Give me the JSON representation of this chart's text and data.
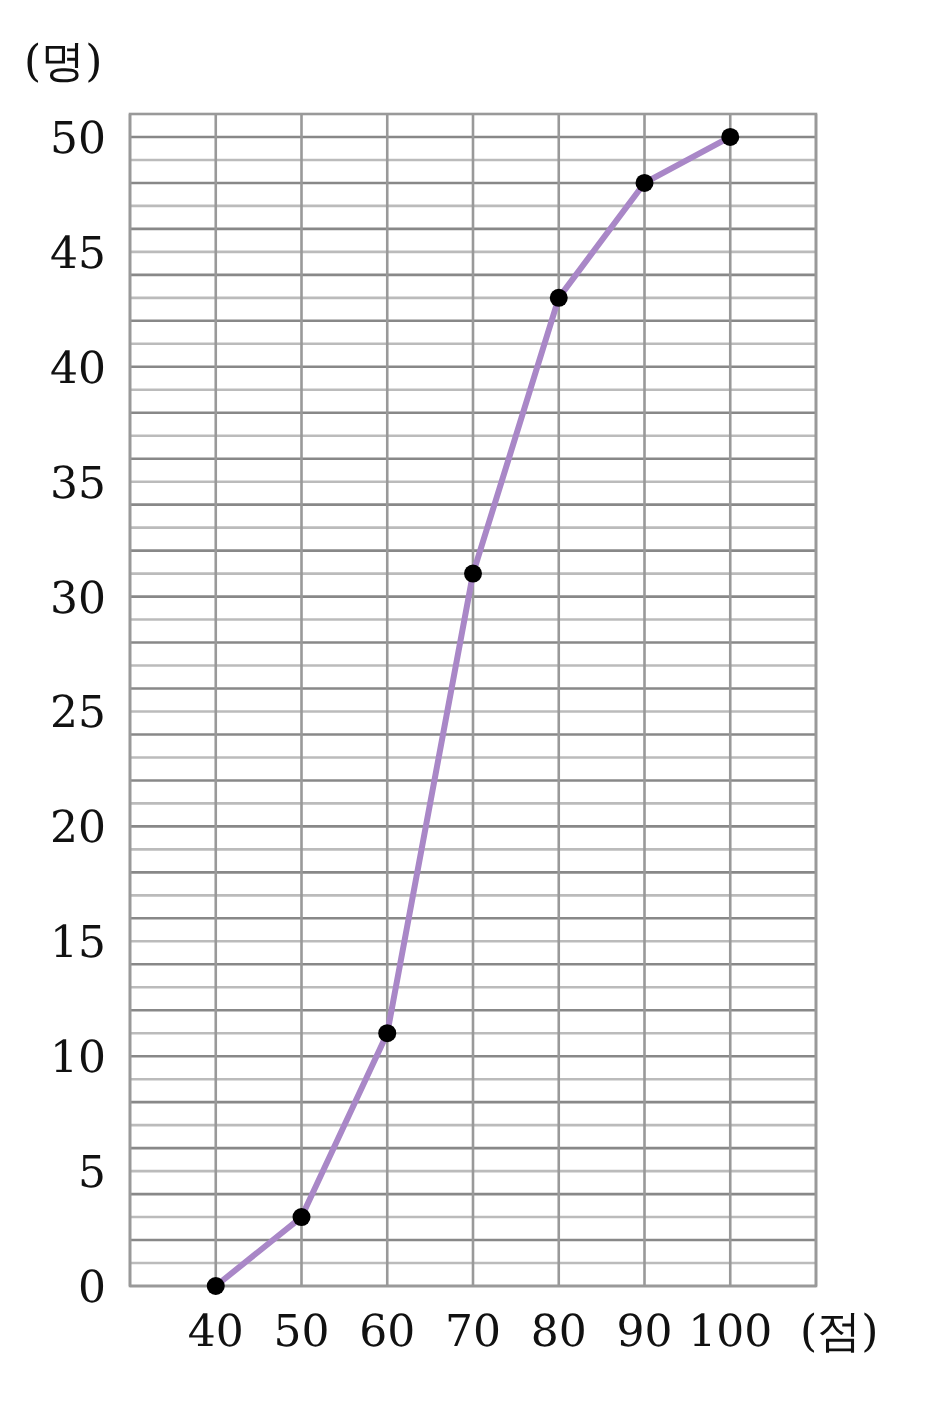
{
  "chart_data": {
    "type": "line",
    "xlabel": "(점)",
    "ylabel": "(명)",
    "x": [
      40,
      50,
      60,
      70,
      80,
      90,
      100
    ],
    "series": [
      {
        "color": "#a987c7",
        "values": [
          0,
          3,
          11,
          31,
          43,
          48,
          50
        ]
      }
    ],
    "xlim": [
      30,
      110
    ],
    "xticks": [
      {
        "value": 30,
        "label": null
      },
      40,
      50,
      60,
      70,
      80,
      90,
      100,
      {
        "value": 110,
        "label": null
      }
    ],
    "ylim": [
      0,
      51
    ],
    "yticks": [
      0,
      {
        "value": 1,
        "label": null
      },
      {
        "value": 2,
        "label": null
      },
      {
        "value": 3,
        "label": null
      },
      {
        "value": 4,
        "label": null
      },
      5,
      {
        "value": 6,
        "label": null
      },
      {
        "value": 7,
        "label": null
      },
      {
        "value": 8,
        "label": null
      },
      {
        "value": 9,
        "label": null
      },
      10,
      {
        "value": 11,
        "label": null
      },
      {
        "value": 12,
        "label": null
      },
      {
        "value": 13,
        "label": null
      },
      {
        "value": 14,
        "label": null
      },
      15,
      {
        "value": 16,
        "label": null
      },
      {
        "value": 17,
        "label": null
      },
      {
        "value": 18,
        "label": null
      },
      {
        "value": 19,
        "label": null
      },
      20,
      {
        "value": 21,
        "label": null
      },
      {
        "value": 22,
        "label": null
      },
      {
        "value": 23,
        "label": null
      },
      {
        "value": 24,
        "label": null
      },
      25,
      {
        "value": 26,
        "label": null
      },
      {
        "value": 27,
        "label": null
      },
      {
        "value": 28,
        "label": null
      },
      {
        "value": 29,
        "label": null
      },
      30,
      {
        "value": 31,
        "label": null
      },
      {
        "value": 32,
        "label": null
      },
      {
        "value": 33,
        "label": null
      },
      {
        "value": 34,
        "label": null
      },
      35,
      {
        "value": 36,
        "label": null
      },
      {
        "value": 37,
        "label": null
      },
      {
        "value": 38,
        "label": null
      },
      {
        "value": 39,
        "label": null
      },
      40,
      {
        "value": 41,
        "label": null
      },
      {
        "value": 42,
        "label": null
      },
      {
        "value": 43,
        "label": null
      },
      {
        "value": 44,
        "label": null
      },
      45,
      {
        "value": 46,
        "label": null
      },
      {
        "value": 47,
        "label": null
      },
      {
        "value": 48,
        "label": null
      },
      {
        "value": 49,
        "label": null
      },
      50
    ],
    "grid": true,
    "marker": "circle",
    "line_style": "solid"
  }
}
